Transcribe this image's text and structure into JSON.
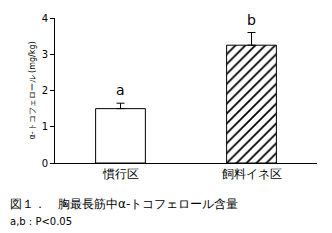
{
  "chart_data": {
    "type": "bar",
    "title": "図１．　胸最長筋中α-トコフェロール含量",
    "subtitle": "a,b : P<0.05",
    "y_label": "α-トコフェロール (mg/kg)",
    "categories": [
      "慣行区",
      "飼料イネ区"
    ],
    "values": [
      1.5,
      3.25
    ],
    "errors": [
      0.15,
      0.35
    ],
    "colors": [
      "#ffffff",
      "#000000"
    ],
    "annotations": [
      {
        "category": "慣行区",
        "text": "a"
      },
      {
        "category": "飼料イネ区",
        "text": "b"
      }
    ],
    "ylim": [
      0,
      4
    ],
    "yticks": [
      0,
      1,
      2,
      3,
      4
    ],
    "grid": false
  }
}
